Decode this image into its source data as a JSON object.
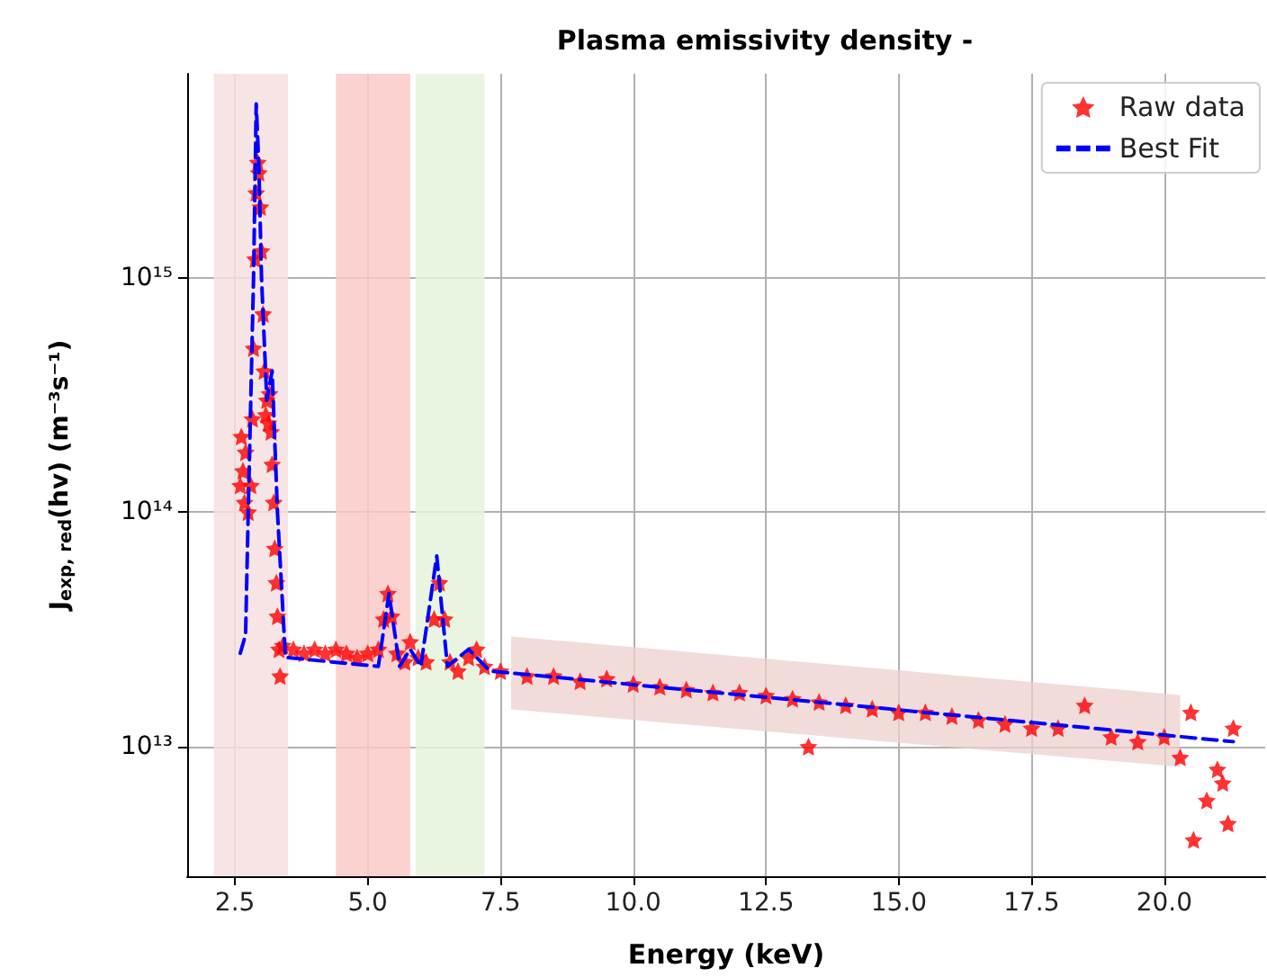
{
  "chart_data": {
    "type": "scatter",
    "title": "Plasma emissivity density -",
    "xlabel": "Energy (keV)",
    "ylabel": "J$_{exp, red}$(hv) (m⁻³s⁻¹)",
    "log": "y",
    "grid": true,
    "legend": "top right",
    "xlim": [
      1.6,
      21.9
    ],
    "ylim": [
      2800000000000.0,
      7400000000000000.0
    ],
    "xticks": [
      {
        "value": 2.5,
        "label": "2.5"
      },
      {
        "value": 5,
        "label": "5.0"
      },
      {
        "value": 7.5,
        "label": "7.5"
      },
      {
        "value": 10,
        "label": "10.0"
      },
      {
        "value": 12.5,
        "label": "12.5"
      },
      {
        "value": 15,
        "label": "15.0"
      },
      {
        "value": 17.5,
        "label": "17.5"
      },
      {
        "value": 20,
        "label": "20.0"
      }
    ],
    "yticks": [
      {
        "value": 10000000000000.0,
        "label": "10¹³"
      },
      {
        "value": 100000000000000.0,
        "label": "10¹⁴"
      },
      {
        "value": 1000000000000000.0,
        "label": "10¹⁵"
      }
    ],
    "bands": [
      {
        "axis": "x",
        "from": 2.1,
        "to": 3.5,
        "color": "#f5e0df"
      },
      {
        "axis": "x",
        "from": 4.4,
        "to": 5.8,
        "color": "#fbcac8"
      },
      {
        "axis": "x",
        "from": 5.9,
        "to": 7.2,
        "color": "#e5f3da"
      }
    ],
    "series": [
      {
        "type": "area",
        "color": "#ecd0ce",
        "x": [
          7.7,
          20.3
        ],
        "values": [
          null,
          null
        ],
        "lower": [
          14400000000000.0,
          8200000000000.0
        ],
        "upper": [
          29500000000000.0,
          16600000000000.0
        ]
      },
      {
        "name": "Raw data",
        "marker": "star",
        "color": "#ff0000",
        "x": [
          2.6,
          2.62,
          2.65,
          2.68,
          2.7,
          2.75,
          2.8,
          2.83,
          2.85,
          2.88,
          2.9,
          2.93,
          2.95,
          2.98,
          3.0,
          3.03,
          3.05,
          3.08,
          3.1,
          3.13,
          3.15,
          3.18,
          3.2,
          3.23,
          3.25,
          3.28,
          3.3,
          3.33,
          3.35,
          3.4,
          3.6,
          3.8,
          4.0,
          4.2,
          4.4,
          4.6,
          4.8,
          5.0,
          5.2,
          5.3,
          5.38,
          5.45,
          5.55,
          5.7,
          5.8,
          5.95,
          6.1,
          6.25,
          6.35,
          6.45,
          6.55,
          6.7,
          6.9,
          7.05,
          7.2,
          7.5,
          8.0,
          8.5,
          9.0,
          9.5,
          10.0,
          10.5,
          11.0,
          11.5,
          12.0,
          12.5,
          13.0,
          13.3,
          13.5,
          14.0,
          14.5,
          15.0,
          15.5,
          16.0,
          16.5,
          17.0,
          17.5,
          18.0,
          18.5,
          19.0,
          19.5,
          20.0,
          20.3,
          20.5,
          20.55,
          20.8,
          21.0,
          21.1,
          21.2,
          21.3
        ],
        "values": [
          130000000000000.0,
          210000000000000.0,
          150000000000000.0,
          110000000000000.0,
          180000000000000.0,
          100000000000000.0,
          130000000000000.0,
          250000000000000.0,
          500000000000000.0,
          1200000000000000.0,
          2300000000000000.0,
          3100000000000000.0,
          2800000000000000.0,
          2000000000000000.0,
          1300000000000000.0,
          700000000000000.0,
          400000000000000.0,
          260000000000000.0,
          300000000000000.0,
          240000000000000.0,
          320000000000000.0,
          220000000000000.0,
          160000000000000.0,
          110000000000000.0,
          70000000000000.0,
          50000000000000.0,
          36000000000000.0,
          26000000000000.0,
          20000000000000.0,
          27000000000000.0,
          26000000000000.0,
          25000000000000.0,
          26000000000000.0,
          25000000000000.0,
          26000000000000.0,
          25000000000000.0,
          24000000000000.0,
          25000000000000.0,
          26000000000000.0,
          35000000000000.0,
          45000000000000.0,
          36000000000000.0,
          25000000000000.0,
          23000000000000.0,
          28000000000000.0,
          24000000000000.0,
          23000000000000.0,
          35000000000000.0,
          50000000000000.0,
          35000000000000.0,
          23000000000000.0,
          21000000000000.0,
          24000000000000.0,
          26000000000000.0,
          22000000000000.0,
          21000000000000.0,
          20000000000000.0,
          20000000000000.0,
          19000000000000.0,
          19500000000000.0,
          18500000000000.0,
          18000000000000.0,
          17500000000000.0,
          17000000000000.0,
          17000000000000.0,
          16500000000000.0,
          16000000000000.0,
          10000000000000.0,
          15500000000000.0,
          15000000000000.0,
          14500000000000.0,
          14000000000000.0,
          14000000000000.0,
          13500000000000.0,
          13000000000000.0,
          12500000000000.0,
          12000000000000.0,
          12000000000000.0,
          15000000000000.0,
          11000000000000.0,
          10500000000000.0,
          11000000000000.0,
          9000000000000.0,
          14000000000000.0,
          4000000000000.0,
          5900000000000.0,
          8000000000000.0,
          7000000000000.0,
          4700000000000.0,
          12000000000000.0
        ]
      },
      {
        "name": "Best Fit",
        "type": "line",
        "line_style": "dashed",
        "marker": "none",
        "color": "#0000ff",
        "x": [
          2.6,
          2.7,
          2.75,
          2.85,
          2.9,
          2.95,
          3.0,
          3.1,
          3.2,
          3.3,
          3.45,
          5.2,
          5.4,
          5.6,
          5.8,
          6.0,
          6.3,
          6.5,
          6.9,
          7.3,
          21.3
        ],
        "values": [
          25000000000000.0,
          30000000000000.0,
          100000000000000.0,
          1000000000000000.0,
          5500000000000000.0,
          3000000000000000.0,
          1000000000000000.0,
          300000000000000.0,
          400000000000000.0,
          100000000000000.0,
          24000000000000.0,
          22000000000000.0,
          45000000000000.0,
          22000000000000.0,
          26000000000000.0,
          22000000000000.0,
          65000000000000.0,
          22000000000000.0,
          26000000000000.0,
          21000000000000.0,
          10500000000000.0
        ]
      }
    ]
  }
}
